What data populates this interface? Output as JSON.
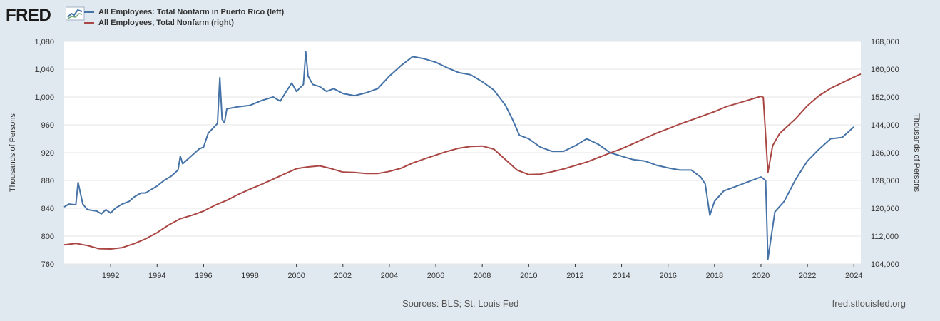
{
  "header": {
    "logo_text": "FRED",
    "logo_icon": "line-chart-icon",
    "series_left_name": "All Employees: Total Nonfarm in Puerto Rico (left)",
    "series_right_name": "All Employees, Total Nonfarm (right)"
  },
  "footer": {
    "sources": "Sources: BLS; St. Louis Fed",
    "url": "fred.stlouisfed.org"
  },
  "colors": {
    "left_series": "#4572a7",
    "right_series": "#aa4643",
    "background": "#e1e9f0",
    "plot": "#ffffff"
  },
  "chart_data": {
    "type": "line",
    "x_range": [
      1990.0,
      2024.3
    ],
    "x_ticks": [
      "1992",
      "1994",
      "1996",
      "1998",
      "2000",
      "2002",
      "2004",
      "2006",
      "2008",
      "2010",
      "2012",
      "2014",
      "2016",
      "2018",
      "2020",
      "2022",
      "2024"
    ],
    "left_axis": {
      "label": "Thousands of Persons",
      "ylim": [
        760,
        1080
      ],
      "ticks": [
        "760",
        "800",
        "840",
        "880",
        "920",
        "960",
        "1,000",
        "1,040",
        "1,080"
      ]
    },
    "right_axis": {
      "label": "Thousands of Persons",
      "ylim": [
        104000,
        168000
      ],
      "ticks": [
        "104,000",
        "112,000",
        "120,000",
        "128,000",
        "136,000",
        "144,000",
        "152,000",
        "160,000",
        "168,000"
      ]
    },
    "series": [
      {
        "name": "All Employees: Total Nonfarm in Puerto Rico",
        "axis": "left",
        "points": [
          [
            1990.0,
            842
          ],
          [
            1990.2,
            846
          ],
          [
            1990.5,
            845
          ],
          [
            1990.6,
            877
          ],
          [
            1990.8,
            846
          ],
          [
            1991.0,
            838
          ],
          [
            1991.4,
            836
          ],
          [
            1991.6,
            832
          ],
          [
            1991.8,
            838
          ],
          [
            1992.0,
            833
          ],
          [
            1992.2,
            840
          ],
          [
            1992.5,
            846
          ],
          [
            1992.8,
            850
          ],
          [
            1993.0,
            856
          ],
          [
            1993.3,
            862
          ],
          [
            1993.5,
            862
          ],
          [
            1993.8,
            868
          ],
          [
            1994.0,
            872
          ],
          [
            1994.3,
            880
          ],
          [
            1994.6,
            886
          ],
          [
            1994.9,
            895
          ],
          [
            1995.0,
            915
          ],
          [
            1995.1,
            904
          ],
          [
            1995.5,
            916
          ],
          [
            1995.8,
            925
          ],
          [
            1996.0,
            928
          ],
          [
            1996.2,
            948
          ],
          [
            1996.4,
            955
          ],
          [
            1996.6,
            962
          ],
          [
            1996.7,
            1028
          ],
          [
            1996.8,
            968
          ],
          [
            1996.9,
            963
          ],
          [
            1997.0,
            983
          ],
          [
            1997.5,
            986
          ],
          [
            1998.0,
            988
          ],
          [
            1998.5,
            995
          ],
          [
            1999.0,
            1000
          ],
          [
            1999.3,
            994
          ],
          [
            1999.6,
            1010
          ],
          [
            1999.8,
            1020
          ],
          [
            2000.0,
            1008
          ],
          [
            2000.3,
            1018
          ],
          [
            2000.4,
            1065
          ],
          [
            2000.5,
            1030
          ],
          [
            2000.7,
            1018
          ],
          [
            2001.0,
            1015
          ],
          [
            2001.3,
            1008
          ],
          [
            2001.6,
            1012
          ],
          [
            2002.0,
            1005
          ],
          [
            2002.5,
            1002
          ],
          [
            2003.0,
            1006
          ],
          [
            2003.5,
            1012
          ],
          [
            2004.0,
            1030
          ],
          [
            2004.5,
            1045
          ],
          [
            2005.0,
            1058
          ],
          [
            2005.5,
            1055
          ],
          [
            2006.0,
            1050
          ],
          [
            2006.5,
            1042
          ],
          [
            2007.0,
            1035
          ],
          [
            2007.5,
            1032
          ],
          [
            2008.0,
            1022
          ],
          [
            2008.5,
            1010
          ],
          [
            2009.0,
            988
          ],
          [
            2009.3,
            968
          ],
          [
            2009.6,
            945
          ],
          [
            2010.0,
            940
          ],
          [
            2010.5,
            928
          ],
          [
            2011.0,
            922
          ],
          [
            2011.5,
            922
          ],
          [
            2012.0,
            930
          ],
          [
            2012.5,
            940
          ],
          [
            2013.0,
            932
          ],
          [
            2013.5,
            920
          ],
          [
            2014.0,
            915
          ],
          [
            2014.5,
            910
          ],
          [
            2015.0,
            908
          ],
          [
            2015.5,
            902
          ],
          [
            2016.0,
            898
          ],
          [
            2016.5,
            895
          ],
          [
            2017.0,
            895
          ],
          [
            2017.4,
            885
          ],
          [
            2017.6,
            875
          ],
          [
            2017.8,
            830
          ],
          [
            2018.0,
            850
          ],
          [
            2018.4,
            865
          ],
          [
            2018.8,
            870
          ],
          [
            2019.2,
            875
          ],
          [
            2019.6,
            880
          ],
          [
            2020.0,
            885
          ],
          [
            2020.2,
            880
          ],
          [
            2020.3,
            767
          ],
          [
            2020.4,
            790
          ],
          [
            2020.6,
            835
          ],
          [
            2021.0,
            850
          ],
          [
            2021.5,
            882
          ],
          [
            2022.0,
            908
          ],
          [
            2022.5,
            925
          ],
          [
            2023.0,
            940
          ],
          [
            2023.5,
            942
          ],
          [
            2024.0,
            957
          ]
        ]
      },
      {
        "name": "All Employees, Total Nonfarm",
        "axis": "right",
        "points": [
          [
            1990.0,
            109500
          ],
          [
            1990.5,
            109900
          ],
          [
            1991.0,
            109300
          ],
          [
            1991.5,
            108400
          ],
          [
            1992.0,
            108300
          ],
          [
            1992.5,
            108700
          ],
          [
            1993.0,
            109800
          ],
          [
            1993.5,
            111200
          ],
          [
            1994.0,
            113000
          ],
          [
            1994.5,
            115200
          ],
          [
            1995.0,
            117000
          ],
          [
            1995.5,
            118000
          ],
          [
            1996.0,
            119200
          ],
          [
            1996.5,
            120900
          ],
          [
            1997.0,
            122300
          ],
          [
            1997.5,
            124000
          ],
          [
            1998.0,
            125500
          ],
          [
            1998.5,
            126900
          ],
          [
            1999.0,
            128400
          ],
          [
            1999.5,
            129900
          ],
          [
            2000.0,
            131400
          ],
          [
            2000.5,
            131900
          ],
          [
            2001.0,
            132200
          ],
          [
            2001.5,
            131400
          ],
          [
            2002.0,
            130400
          ],
          [
            2002.5,
            130300
          ],
          [
            2003.0,
            130000
          ],
          [
            2003.5,
            130000
          ],
          [
            2004.0,
            130600
          ],
          [
            2004.5,
            131500
          ],
          [
            2005.0,
            133000
          ],
          [
            2005.5,
            134200
          ],
          [
            2006.0,
            135300
          ],
          [
            2006.5,
            136400
          ],
          [
            2007.0,
            137300
          ],
          [
            2007.5,
            137800
          ],
          [
            2008.0,
            137900
          ],
          [
            2008.5,
            137000
          ],
          [
            2009.0,
            134000
          ],
          [
            2009.5,
            131000
          ],
          [
            2010.0,
            129700
          ],
          [
            2010.5,
            129800
          ],
          [
            2011.0,
            130500
          ],
          [
            2011.5,
            131300
          ],
          [
            2012.0,
            132300
          ],
          [
            2012.5,
            133300
          ],
          [
            2013.0,
            134600
          ],
          [
            2013.5,
            135900
          ],
          [
            2014.0,
            137100
          ],
          [
            2014.5,
            138600
          ],
          [
            2015.0,
            140100
          ],
          [
            2015.5,
            141600
          ],
          [
            2016.0,
            142900
          ],
          [
            2016.5,
            144200
          ],
          [
            2017.0,
            145400
          ],
          [
            2017.5,
            146600
          ],
          [
            2018.0,
            147800
          ],
          [
            2018.5,
            149200
          ],
          [
            2019.0,
            150200
          ],
          [
            2019.5,
            151200
          ],
          [
            2020.0,
            152200
          ],
          [
            2020.1,
            151900
          ],
          [
            2020.3,
            130300
          ],
          [
            2020.5,
            138000
          ],
          [
            2020.8,
            141500
          ],
          [
            2021.0,
            142700
          ],
          [
            2021.5,
            145800
          ],
          [
            2022.0,
            149500
          ],
          [
            2022.5,
            152400
          ],
          [
            2023.0,
            154500
          ],
          [
            2023.5,
            156100
          ],
          [
            2024.0,
            157700
          ],
          [
            2024.3,
            158600
          ]
        ]
      }
    ]
  }
}
